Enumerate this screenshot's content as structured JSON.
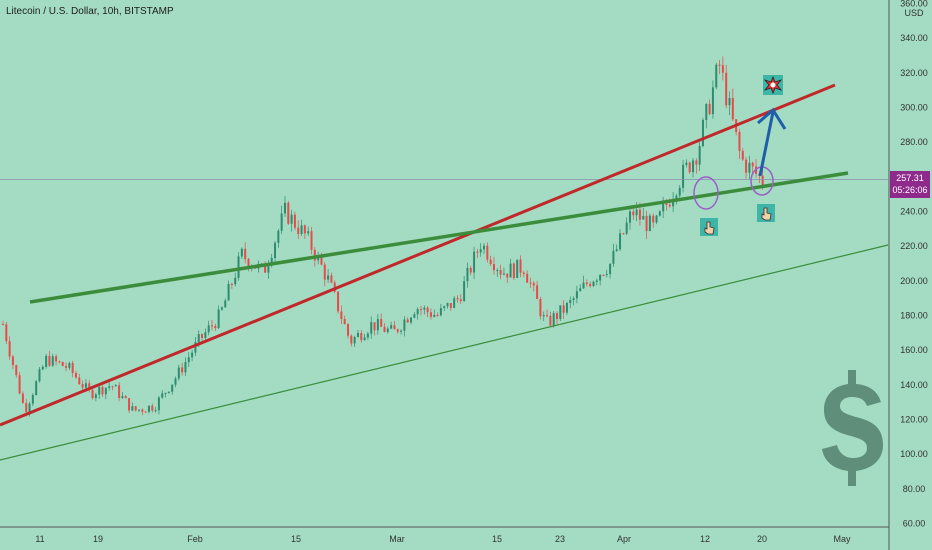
{
  "chart_title": "Litecoin / U.S. Dollar, 10h, BITSTAMP",
  "currency_label": "USD",
  "price_badge": {
    "price": "257.31",
    "countdown": "05:26:06",
    "color": "#8e2a8c"
  },
  "colors": {
    "background": "#a3dcc3",
    "up_candle": "#2e8b6f",
    "down_candle": "#e84a4a",
    "red_trendline": "#c0282a",
    "green_trendline": "#3b8c3b",
    "arrow": "#1f5fa8",
    "circle": "#9b5fc8",
    "dollar_sign": "#5f8f7a"
  },
  "icons": [
    "pointing-hand-icon",
    "pointing-hand-icon",
    "explosion-icon",
    "dollar-sign-icon"
  ],
  "chart_data": {
    "type": "candlestick",
    "title": "Litecoin / U.S. Dollar, 10h, BITSTAMP",
    "ylabel": "USD",
    "ylim": [
      58,
      362
    ],
    "y_ticks": [
      60,
      80,
      100,
      120,
      140,
      160,
      180,
      200,
      220,
      240,
      260,
      280,
      300,
      320,
      340,
      360
    ],
    "x_ticks": [
      "11",
      "19",
      "Feb",
      "15",
      "Mar",
      "15",
      "23",
      "Apr",
      "12",
      "20",
      "May"
    ],
    "current_price": 257.31,
    "price_path": [
      {
        "x": "11",
        "y": 175
      },
      {
        "x": "13",
        "y": 125
      },
      {
        "x": "16",
        "y": 155
      },
      {
        "x": "19",
        "y": 150
      },
      {
        "x": "23",
        "y": 135
      },
      {
        "x": "27",
        "y": 140
      },
      {
        "x": "31",
        "y": 125
      },
      {
        "x": "Feb",
        "y": 128
      },
      {
        "x": "4",
        "y": 145
      },
      {
        "x": "8",
        "y": 165
      },
      {
        "x": "11",
        "y": 180
      },
      {
        "x": "15",
        "y": 215
      },
      {
        "x": "17",
        "y": 205
      },
      {
        "x": "19",
        "y": 240
      },
      {
        "x": "21",
        "y": 225
      },
      {
        "x": "23",
        "y": 200
      },
      {
        "x": "25",
        "y": 165
      },
      {
        "x": "27",
        "y": 175
      },
      {
        "x": "Mar",
        "y": 170
      },
      {
        "x": "4",
        "y": 185
      },
      {
        "x": "7",
        "y": 180
      },
      {
        "x": "10",
        "y": 190
      },
      {
        "x": "13",
        "y": 222
      },
      {
        "x": "15",
        "y": 205
      },
      {
        "x": "19",
        "y": 208
      },
      {
        "x": "23",
        "y": 175
      },
      {
        "x": "27",
        "y": 185
      },
      {
        "x": "31",
        "y": 200
      },
      {
        "x": "Apr 3",
        "y": 210
      },
      {
        "x": "6",
        "y": 240
      },
      {
        "x": "9",
        "y": 230
      },
      {
        "x": "12",
        "y": 255
      },
      {
        "x": "15",
        "y": 275
      },
      {
        "x": "17",
        "y": 325
      },
      {
        "x": "18",
        "y": 270
      },
      {
        "x": "20",
        "y": 258
      }
    ],
    "trendlines": [
      {
        "color": "red",
        "from": {
          "x": "start",
          "y": 115
        },
        "to": {
          "x": "Apr 21",
          "y": 312
        }
      },
      {
        "color": "green",
        "from": {
          "x": "Jan 1",
          "y": 186
        },
        "to": {
          "x": "Apr 23",
          "y": 261
        }
      },
      {
        "color": "green",
        "from": {
          "x": "start",
          "y": 95
        },
        "to": {
          "x": "May",
          "y": 220
        }
      }
    ],
    "grid": false
  }
}
